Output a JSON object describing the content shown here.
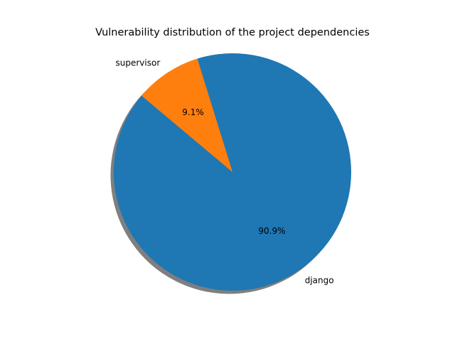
{
  "chart_data": {
    "type": "pie",
    "title": "Vulnerability distribution of the project dependencies",
    "labels": [
      "django",
      "supervisor"
    ],
    "values": [
      90.9,
      9.1
    ],
    "pct_labels": [
      "90.9%",
      "9.1%"
    ],
    "colors": [
      "#1f77b4",
      "#ff7f0e"
    ],
    "shadow": true,
    "legend": "none"
  }
}
